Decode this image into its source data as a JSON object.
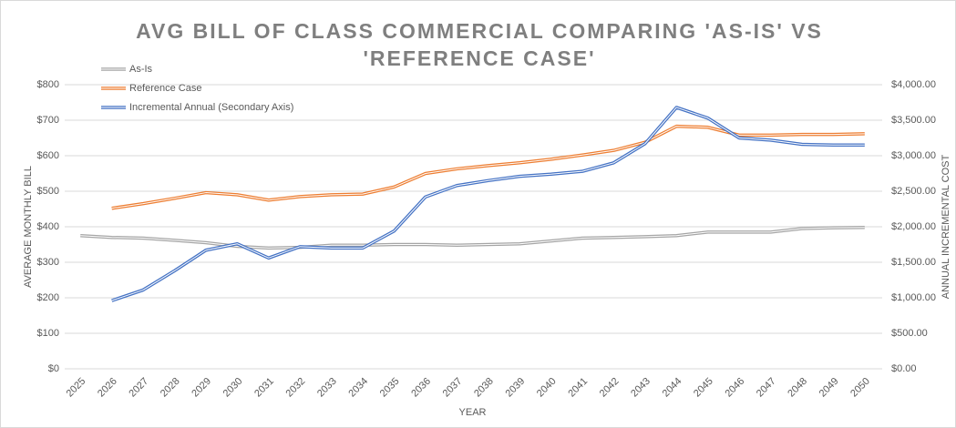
{
  "chart_data": {
    "type": "line",
    "title": "AVG BILL OF CLASS COMMERCIAL COMPARING 'AS-IS' VS 'REFERENCE CASE'",
    "x_label": "YEAR",
    "y_label": "AVERAGE MONTHLY BILL",
    "y2_label": "ANNUAL INCREMENTAL COST",
    "categories": [
      "2025",
      "2026",
      "2027",
      "2028",
      "2029",
      "2030",
      "2031",
      "2032",
      "2033",
      "2034",
      "2035",
      "2036",
      "2037",
      "2038",
      "2039",
      "2040",
      "2041",
      "2042",
      "2043",
      "2044",
      "2045",
      "2046",
      "2047",
      "2048",
      "2049",
      "2050"
    ],
    "series": [
      {
        "name": "As-Is",
        "color": "#a5a5a5",
        "values": [
          375,
          370,
          368,
          362,
          355,
          345,
          340,
          342,
          348,
          348,
          350,
          350,
          348,
          350,
          352,
          360,
          368,
          370,
          372,
          375,
          385,
          385,
          385,
          395,
          397,
          398
        ]
      },
      {
        "name": "Reference Case",
        "color": "#ed7d31",
        "values": [
          null,
          452,
          465,
          480,
          496,
          490,
          475,
          485,
          490,
          492,
          512,
          550,
          563,
          572,
          580,
          590,
          602,
          615,
          638,
          683,
          680,
          658,
          658,
          660,
          660,
          662
        ]
      },
      {
        "name": "Incremental Annual (Secondary Axis)",
        "color": "#4472c4",
        "axis": "y2",
        "values": [
          null,
          960,
          1110,
          1380,
          1670,
          1760,
          1560,
          1720,
          1700,
          1700,
          1940,
          2420,
          2580,
          2650,
          2710,
          2740,
          2780,
          2900,
          3170,
          3680,
          3530,
          3250,
          3220,
          3160,
          3150,
          3150
        ]
      }
    ],
    "ylim": [
      0,
      800
    ],
    "yticks": [
      {
        "value": 0,
        "label": "$0"
      },
      {
        "value": 100,
        "label": "$100"
      },
      {
        "value": 200,
        "label": "$200"
      },
      {
        "value": 300,
        "label": "$300"
      },
      {
        "value": 400,
        "label": "$400"
      },
      {
        "value": 500,
        "label": "$500"
      },
      {
        "value": 600,
        "label": "$600"
      },
      {
        "value": 700,
        "label": "$700"
      },
      {
        "value": 800,
        "label": "$800"
      }
    ],
    "y2lim": [
      0,
      4000
    ],
    "y2ticks": [
      {
        "value": 0,
        "label": "$0.00"
      },
      {
        "value": 500,
        "label": "$500.00"
      },
      {
        "value": 1000,
        "label": "$1,000.00"
      },
      {
        "value": 1500,
        "label": "$1,500.00"
      },
      {
        "value": 2000,
        "label": "$2,000.00"
      },
      {
        "value": 2500,
        "label": "$2,500.00"
      },
      {
        "value": 3000,
        "label": "$3,000.00"
      },
      {
        "value": 3500,
        "label": "$3,500.00"
      },
      {
        "value": 4000,
        "label": "$4,000.00"
      }
    ],
    "grid": true,
    "legend": "top-left"
  }
}
